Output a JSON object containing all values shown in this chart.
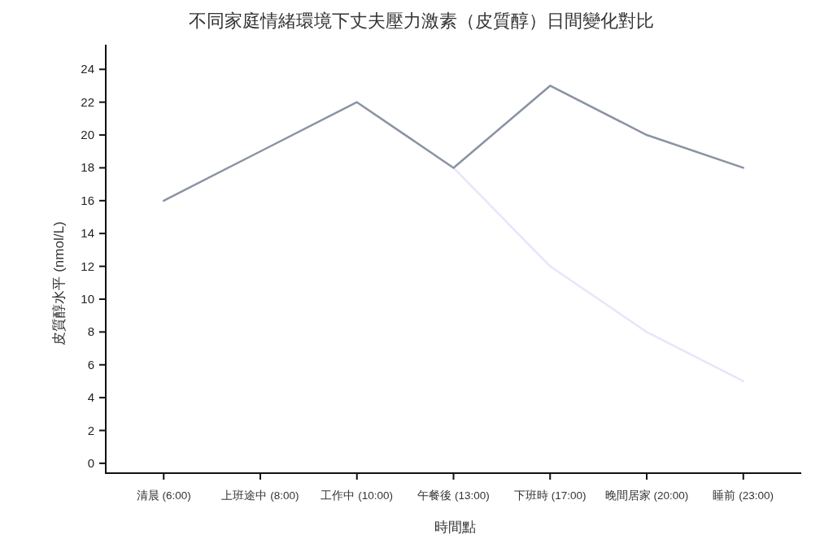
{
  "chart_data": {
    "type": "line",
    "title": "不同家庭情緒環境下丈夫壓力激素（皮質醇）日間變化對比",
    "xlabel": "時間點",
    "ylabel": "皮質醇水平 (nmol/L)",
    "categories": [
      "清晨 (6:00)",
      "上班途中 (8:00)",
      "工作中 (10:00)",
      "午餐後 (13:00)",
      "下班時 (17:00)",
      "晚間居家 (20:00)",
      "睡前 (23:00)"
    ],
    "series": [
      {
        "color": "#e6e6fa",
        "values": [
          null,
          null,
          null,
          18,
          12,
          8,
          5
        ]
      },
      {
        "color": "#8a93a3",
        "values": [
          16,
          19,
          22,
          18,
          23,
          20,
          18
        ]
      }
    ],
    "ylim": [
      -0.6,
      25.5
    ],
    "yticks": [
      0,
      2,
      4,
      6,
      8,
      10,
      12,
      14,
      16,
      18,
      20,
      22,
      24
    ]
  }
}
